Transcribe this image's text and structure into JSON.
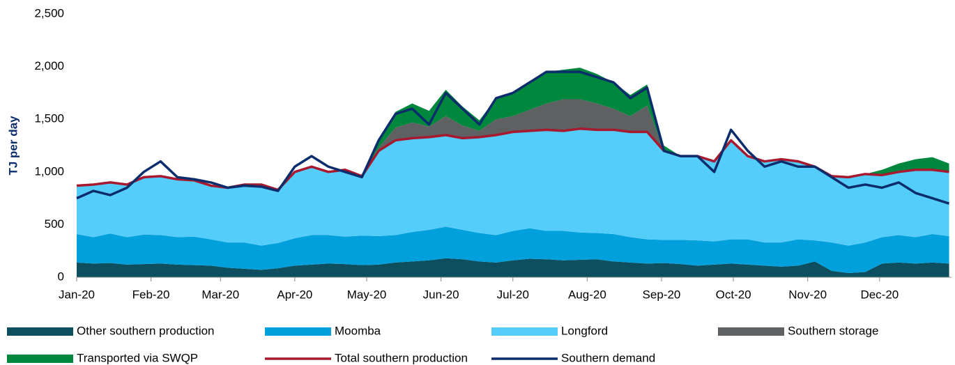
{
  "chart_data": {
    "type": "stacked-area",
    "y_label": "TJ per day",
    "x": [
      0,
      7,
      14,
      21,
      28,
      35,
      42,
      49,
      56,
      63,
      70,
      77,
      84,
      91,
      98,
      105,
      112,
      119,
      126,
      133,
      140,
      147,
      154,
      161,
      168,
      175,
      182,
      189,
      196,
      203,
      210,
      217,
      224,
      231,
      238,
      245,
      252,
      259,
      266,
      273,
      280,
      287,
      294,
      301,
      308,
      315,
      322,
      329,
      336,
      343,
      350,
      357,
      364
    ],
    "xlim": [
      0,
      365
    ],
    "xticks": [
      {
        "value": 0,
        "label": "Jan-20"
      },
      {
        "value": 31,
        "label": "Feb-20"
      },
      {
        "value": 60,
        "label": "Mar-20"
      },
      {
        "value": 91,
        "label": "Apr-20"
      },
      {
        "value": 121,
        "label": "May-20"
      },
      {
        "value": 152,
        "label": "Jun-20"
      },
      {
        "value": 182,
        "label": "Jul-20"
      },
      {
        "value": 213,
        "label": "Aug-20"
      },
      {
        "value": 244,
        "label": "Sep-20"
      },
      {
        "value": 274,
        "label": "Oct-20"
      },
      {
        "value": 305,
        "label": "Nov-20"
      },
      {
        "value": 335,
        "label": "Dec-20"
      }
    ],
    "ylim": [
      0,
      2500
    ],
    "yticks": [
      0,
      500,
      {
        "value": 1000,
        "label": "1,000"
      },
      {
        "value": 1500,
        "label": "1,500"
      },
      {
        "value": 2000,
        "label": "2,000"
      },
      {
        "value": 2500,
        "label": "2,500"
      }
    ],
    "series": [
      {
        "name": "Other southern production",
        "color": "#0d4f5e",
        "kind": "area",
        "values": [
          140,
          130,
          135,
          120,
          125,
          130,
          120,
          115,
          110,
          90,
          80,
          70,
          85,
          110,
          120,
          130,
          125,
          115,
          120,
          140,
          150,
          160,
          180,
          170,
          150,
          140,
          160,
          175,
          170,
          160,
          165,
          170,
          150,
          140,
          130,
          135,
          125,
          110,
          120,
          130,
          120,
          110,
          100,
          110,
          150,
          60,
          40,
          50,
          130,
          140,
          130,
          140,
          130
        ]
      },
      {
        "name": "Moomba",
        "color": "#00a0dc",
        "kind": "area",
        "values": [
          270,
          250,
          280,
          260,
          280,
          270,
          260,
          270,
          250,
          240,
          250,
          230,
          240,
          260,
          280,
          270,
          260,
          280,
          270,
          260,
          280,
          290,
          300,
          280,
          270,
          260,
          280,
          290,
          270,
          280,
          260,
          250,
          260,
          240,
          230,
          220,
          230,
          240,
          220,
          230,
          240,
          220,
          230,
          250,
          200,
          270,
          260,
          280,
          250,
          260,
          250,
          270,
          260
        ]
      },
      {
        "name": "Longford",
        "color": "#55cdfa",
        "kind": "area",
        "values": [
          460,
          500,
          485,
          500,
          545,
          560,
          550,
          535,
          510,
          520,
          550,
          580,
          505,
          630,
          650,
          600,
          635,
          565,
          810,
          900,
          890,
          880,
          870,
          870,
          910,
          950,
          940,
          925,
          960,
          950,
          985,
          980,
          990,
          1000,
          1020,
          845,
          795,
          800,
          760,
          940,
          790,
          770,
          790,
          740,
          700,
          630,
          650,
          650,
          590,
          600,
          640,
          610,
          610
        ]
      },
      {
        "name": "Southern storage",
        "color": "#5f6062",
        "kind": "area",
        "values": [
          0,
          0,
          0,
          0,
          0,
          0,
          0,
          0,
          0,
          0,
          0,
          0,
          0,
          0,
          0,
          0,
          0,
          0,
          30,
          120,
          150,
          100,
          180,
          120,
          60,
          150,
          150,
          200,
          250,
          300,
          280,
          250,
          200,
          150,
          250,
          0,
          0,
          0,
          0,
          0,
          0,
          0,
          0,
          0,
          0,
          0,
          0,
          0,
          0,
          0,
          0,
          0,
          0
        ]
      },
      {
        "name": "Transported via SWQP",
        "color": "#00873e",
        "kind": "area",
        "values": [
          0,
          0,
          0,
          0,
          0,
          0,
          0,
          0,
          0,
          0,
          0,
          0,
          0,
          0,
          0,
          0,
          0,
          0,
          50,
          150,
          180,
          150,
          250,
          180,
          100,
          200,
          220,
          250,
          300,
          280,
          300,
          280,
          250,
          200,
          200,
          50,
          0,
          0,
          0,
          0,
          0,
          0,
          0,
          0,
          0,
          0,
          0,
          0,
          50,
          80,
          100,
          120,
          80
        ]
      },
      {
        "name": "Total southern production",
        "color": "#a6192e",
        "kind": "line",
        "values": [
          870,
          880,
          900,
          880,
          950,
          960,
          930,
          920,
          870,
          850,
          880,
          880,
          830,
          1000,
          1050,
          1000,
          1020,
          960,
          1200,
          1300,
          1320,
          1330,
          1350,
          1320,
          1330,
          1350,
          1380,
          1390,
          1400,
          1390,
          1410,
          1400,
          1400,
          1380,
          1380,
          1200,
          1150,
          1150,
          1100,
          1300,
          1150,
          1100,
          1120,
          1100,
          1050,
          960,
          950,
          980,
          970,
          1000,
          1020,
          1020,
          1000
        ]
      },
      {
        "name": "Southern demand",
        "color": "#0b2d6b",
        "kind": "line",
        "values": [
          750,
          820,
          780,
          850,
          1000,
          1100,
          950,
          930,
          900,
          850,
          870,
          860,
          820,
          1050,
          1150,
          1050,
          1000,
          950,
          1300,
          1550,
          1600,
          1450,
          1750,
          1600,
          1450,
          1700,
          1750,
          1850,
          1950,
          1950,
          1950,
          1900,
          1850,
          1700,
          1800,
          1200,
          1150,
          1150,
          1000,
          1400,
          1200,
          1050,
          1100,
          1050,
          1050,
          950,
          850,
          880,
          850,
          900,
          800,
          750,
          700
        ]
      }
    ]
  }
}
